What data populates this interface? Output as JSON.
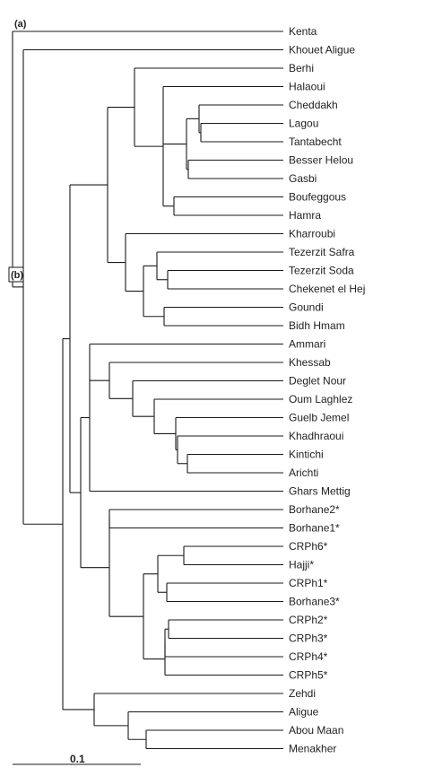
{
  "panel_labels": {
    "a": "(a)",
    "b": "(b)"
  },
  "scale_bar": {
    "label": "0.1"
  },
  "leaves": [
    "Kenta",
    "Khouet Aligue",
    "Berhi",
    "Halaoui",
    "Cheddakh",
    "Lagou",
    "Tantabecht",
    "Besser Helou",
    "Gasbi",
    "Boufeggous",
    "Hamra",
    "Kharroubi",
    "Tezerzit Safra",
    "Tezerzit Soda",
    "Chekenet el Hej",
    "Goundi",
    "Bidh Hmam",
    "Ammari",
    "Khessab",
    "Deglet Nour",
    "Oum Laghlez",
    "Guelb Jemel",
    "Khadhraoui",
    "Kintichi",
    "Arichti",
    "Ghars Mettig",
    "Borhane2*",
    "Borhane1*",
    "CRPh6*",
    "Hajji*",
    "CRPh1*",
    "Borhane3*",
    "CRPh2*",
    "CRPh3*",
    "CRPh4*",
    "CRPh5*",
    "Zehdi",
    "Aligue",
    "Abou Maan",
    "Menakher"
  ]
}
